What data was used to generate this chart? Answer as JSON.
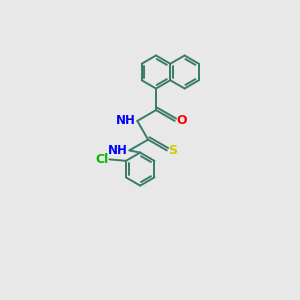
{
  "background_color": "#e8e8e8",
  "bond_color": "#3a7a6a",
  "atom_colors": {
    "N": "#0000ff",
    "O": "#ff0000",
    "S": "#cccc00",
    "Cl": "#00bb00",
    "C": "#3a7a6a",
    "H": "#3a7a6a"
  },
  "figsize": [
    3.0,
    3.0
  ],
  "dpi": 100,
  "lw": 1.4,
  "r": 0.55
}
